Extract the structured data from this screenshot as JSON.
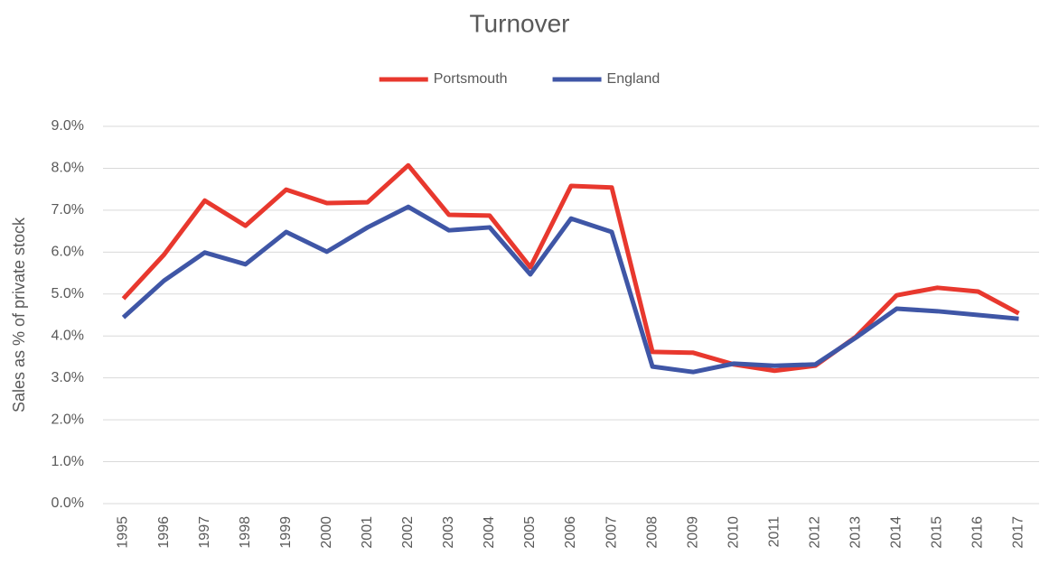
{
  "chart_data": {
    "type": "line",
    "title": "Turnover",
    "y_label": "Sales as % of private stock",
    "categories": [
      "1995",
      "1996",
      "1997",
      "1998",
      "1999",
      "2000",
      "2001",
      "2002",
      "2003",
      "2004",
      "2005",
      "2006",
      "2007",
      "2008",
      "2009",
      "2010",
      "2011",
      "2012",
      "2013",
      "2014",
      "2015",
      "2016",
      "2017"
    ],
    "series": [
      {
        "name": "Portsmouth",
        "color": "#e8382e",
        "values": [
          4.89,
          5.94,
          7.23,
          6.63,
          7.49,
          7.17,
          7.19,
          8.07,
          6.89,
          6.87,
          5.64,
          7.58,
          7.54,
          3.62,
          3.6,
          3.32,
          3.17,
          3.29,
          3.98,
          4.97,
          5.15,
          5.06,
          4.54
        ]
      },
      {
        "name": "England",
        "color": "#3f56a6",
        "values": [
          4.44,
          5.32,
          5.99,
          5.71,
          6.48,
          6.01,
          6.59,
          7.08,
          6.52,
          6.59,
          5.47,
          6.8,
          6.48,
          3.27,
          3.14,
          3.34,
          3.29,
          3.32,
          3.96,
          4.65,
          4.59,
          4.5,
          4.41
        ]
      }
    ],
    "ylim": [
      0,
      9
    ],
    "yticks": [
      {
        "value": 0,
        "label": "0.0%"
      },
      {
        "value": 1,
        "label": "1.0%"
      },
      {
        "value": 2,
        "label": "2.0%"
      },
      {
        "value": 3,
        "label": "3.0%"
      },
      {
        "value": 4,
        "label": "4.0%"
      },
      {
        "value": 5,
        "label": "5.0%"
      },
      {
        "value": 6,
        "label": "6.0%"
      },
      {
        "value": 7,
        "label": "7.0%"
      },
      {
        "value": 8,
        "label": "8.0%"
      },
      {
        "value": 9,
        "label": "9.0%"
      }
    ],
    "grid": true,
    "legend": "top"
  }
}
